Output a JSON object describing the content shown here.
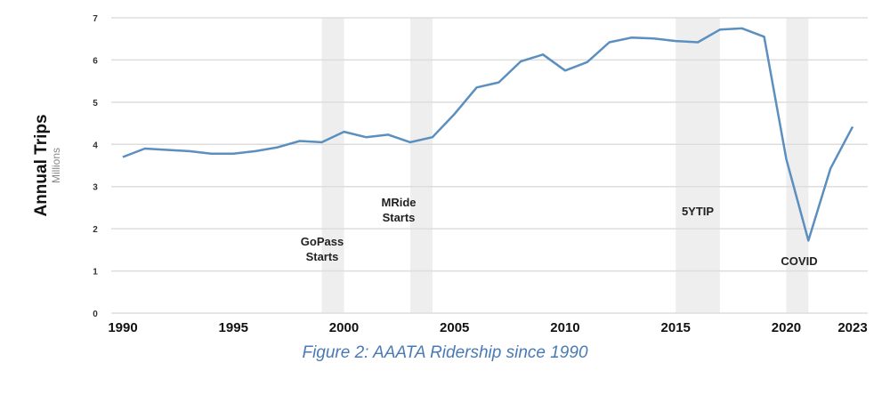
{
  "chart_data": {
    "type": "line",
    "title": "",
    "ylabel": "Annual Trips",
    "ylabel_unit": "Millions",
    "xlabel": "",
    "ylim": [
      0,
      7
    ],
    "xlim": [
      1990,
      2023
    ],
    "grid": true,
    "yticks": [
      "0",
      "1",
      "2",
      "3",
      "4",
      "5",
      "6",
      "7"
    ],
    "xticks": [
      "1990",
      "1995",
      "2000",
      "2005",
      "2010",
      "2015",
      "2020",
      "2023"
    ],
    "x": [
      1990,
      1991,
      1992,
      1993,
      1994,
      1995,
      1996,
      1997,
      1998,
      1999,
      2000,
      2001,
      2002,
      2003,
      2004,
      2005,
      2006,
      2007,
      2008,
      2009,
      2010,
      2011,
      2012,
      2013,
      2014,
      2015,
      2016,
      2017,
      2018,
      2019,
      2020,
      2021,
      2022,
      2023
    ],
    "series": [
      {
        "values": [
          3.7,
          3.9,
          3.87,
          3.84,
          3.78,
          3.78,
          3.84,
          3.93,
          4.08,
          4.05,
          4.3,
          4.17,
          4.23,
          4.05,
          4.17,
          4.72,
          5.35,
          5.47,
          5.97,
          6.13,
          5.75,
          5.95,
          6.42,
          6.53,
          6.51,
          6.45,
          6.42,
          6.72,
          6.75,
          6.55,
          3.65,
          1.72,
          3.43,
          4.42
        ],
        "color": "#5b8fbf"
      }
    ],
    "annotations": [
      {
        "label_lines": [
          "GoPass",
          "Starts"
        ],
        "band": [
          1999,
          2000
        ]
      },
      {
        "label_lines": [
          "MRide",
          "Starts"
        ],
        "band": [
          2003,
          2004
        ]
      },
      {
        "label_lines": [
          "5YTIP"
        ],
        "band": [
          2015,
          2017
        ]
      },
      {
        "label_lines": [
          "COVID"
        ],
        "band": [
          2020,
          2021
        ]
      }
    ],
    "band_color": "#eeeeee",
    "grid_color": "#dddddd"
  },
  "caption": {
    "text": "Figure 2: AAATA Ridership since 1990",
    "color": "#4a7ab5"
  }
}
